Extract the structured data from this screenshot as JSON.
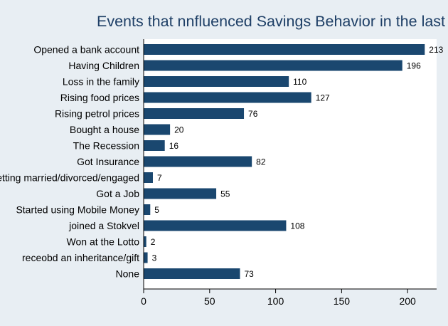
{
  "chart_data": {
    "type": "bar",
    "orientation": "horizontal",
    "title": "Events that nnfluenced Savings Behavior in the last",
    "categories": [
      "Opened a bank account",
      "Having Children",
      "Loss in the family",
      "Rising food prices",
      "Rising petrol prices",
      "Bought a house",
      "The Recession",
      "Got Insurance",
      "Getting married/divorced/engaged",
      "Got a Job",
      "Started using Mobile Money",
      "joined a Stokvel",
      "Won at the Lotto",
      "receobd an inheritance/gift",
      "None"
    ],
    "values": [
      213,
      196,
      110,
      127,
      76,
      20,
      16,
      82,
      7,
      55,
      5,
      108,
      2,
      3,
      73
    ],
    "xlim": [
      0,
      222
    ],
    "xticks": [
      0,
      50,
      100,
      150,
      200
    ],
    "xlabel": "",
    "ylabel": "",
    "grid": false,
    "data_labels": true,
    "colors": {
      "bar": "#1a476f",
      "background": "#e8eef3",
      "plot_background": "#ffffff",
      "title": "#1e3f66",
      "text": "#000000"
    }
  }
}
